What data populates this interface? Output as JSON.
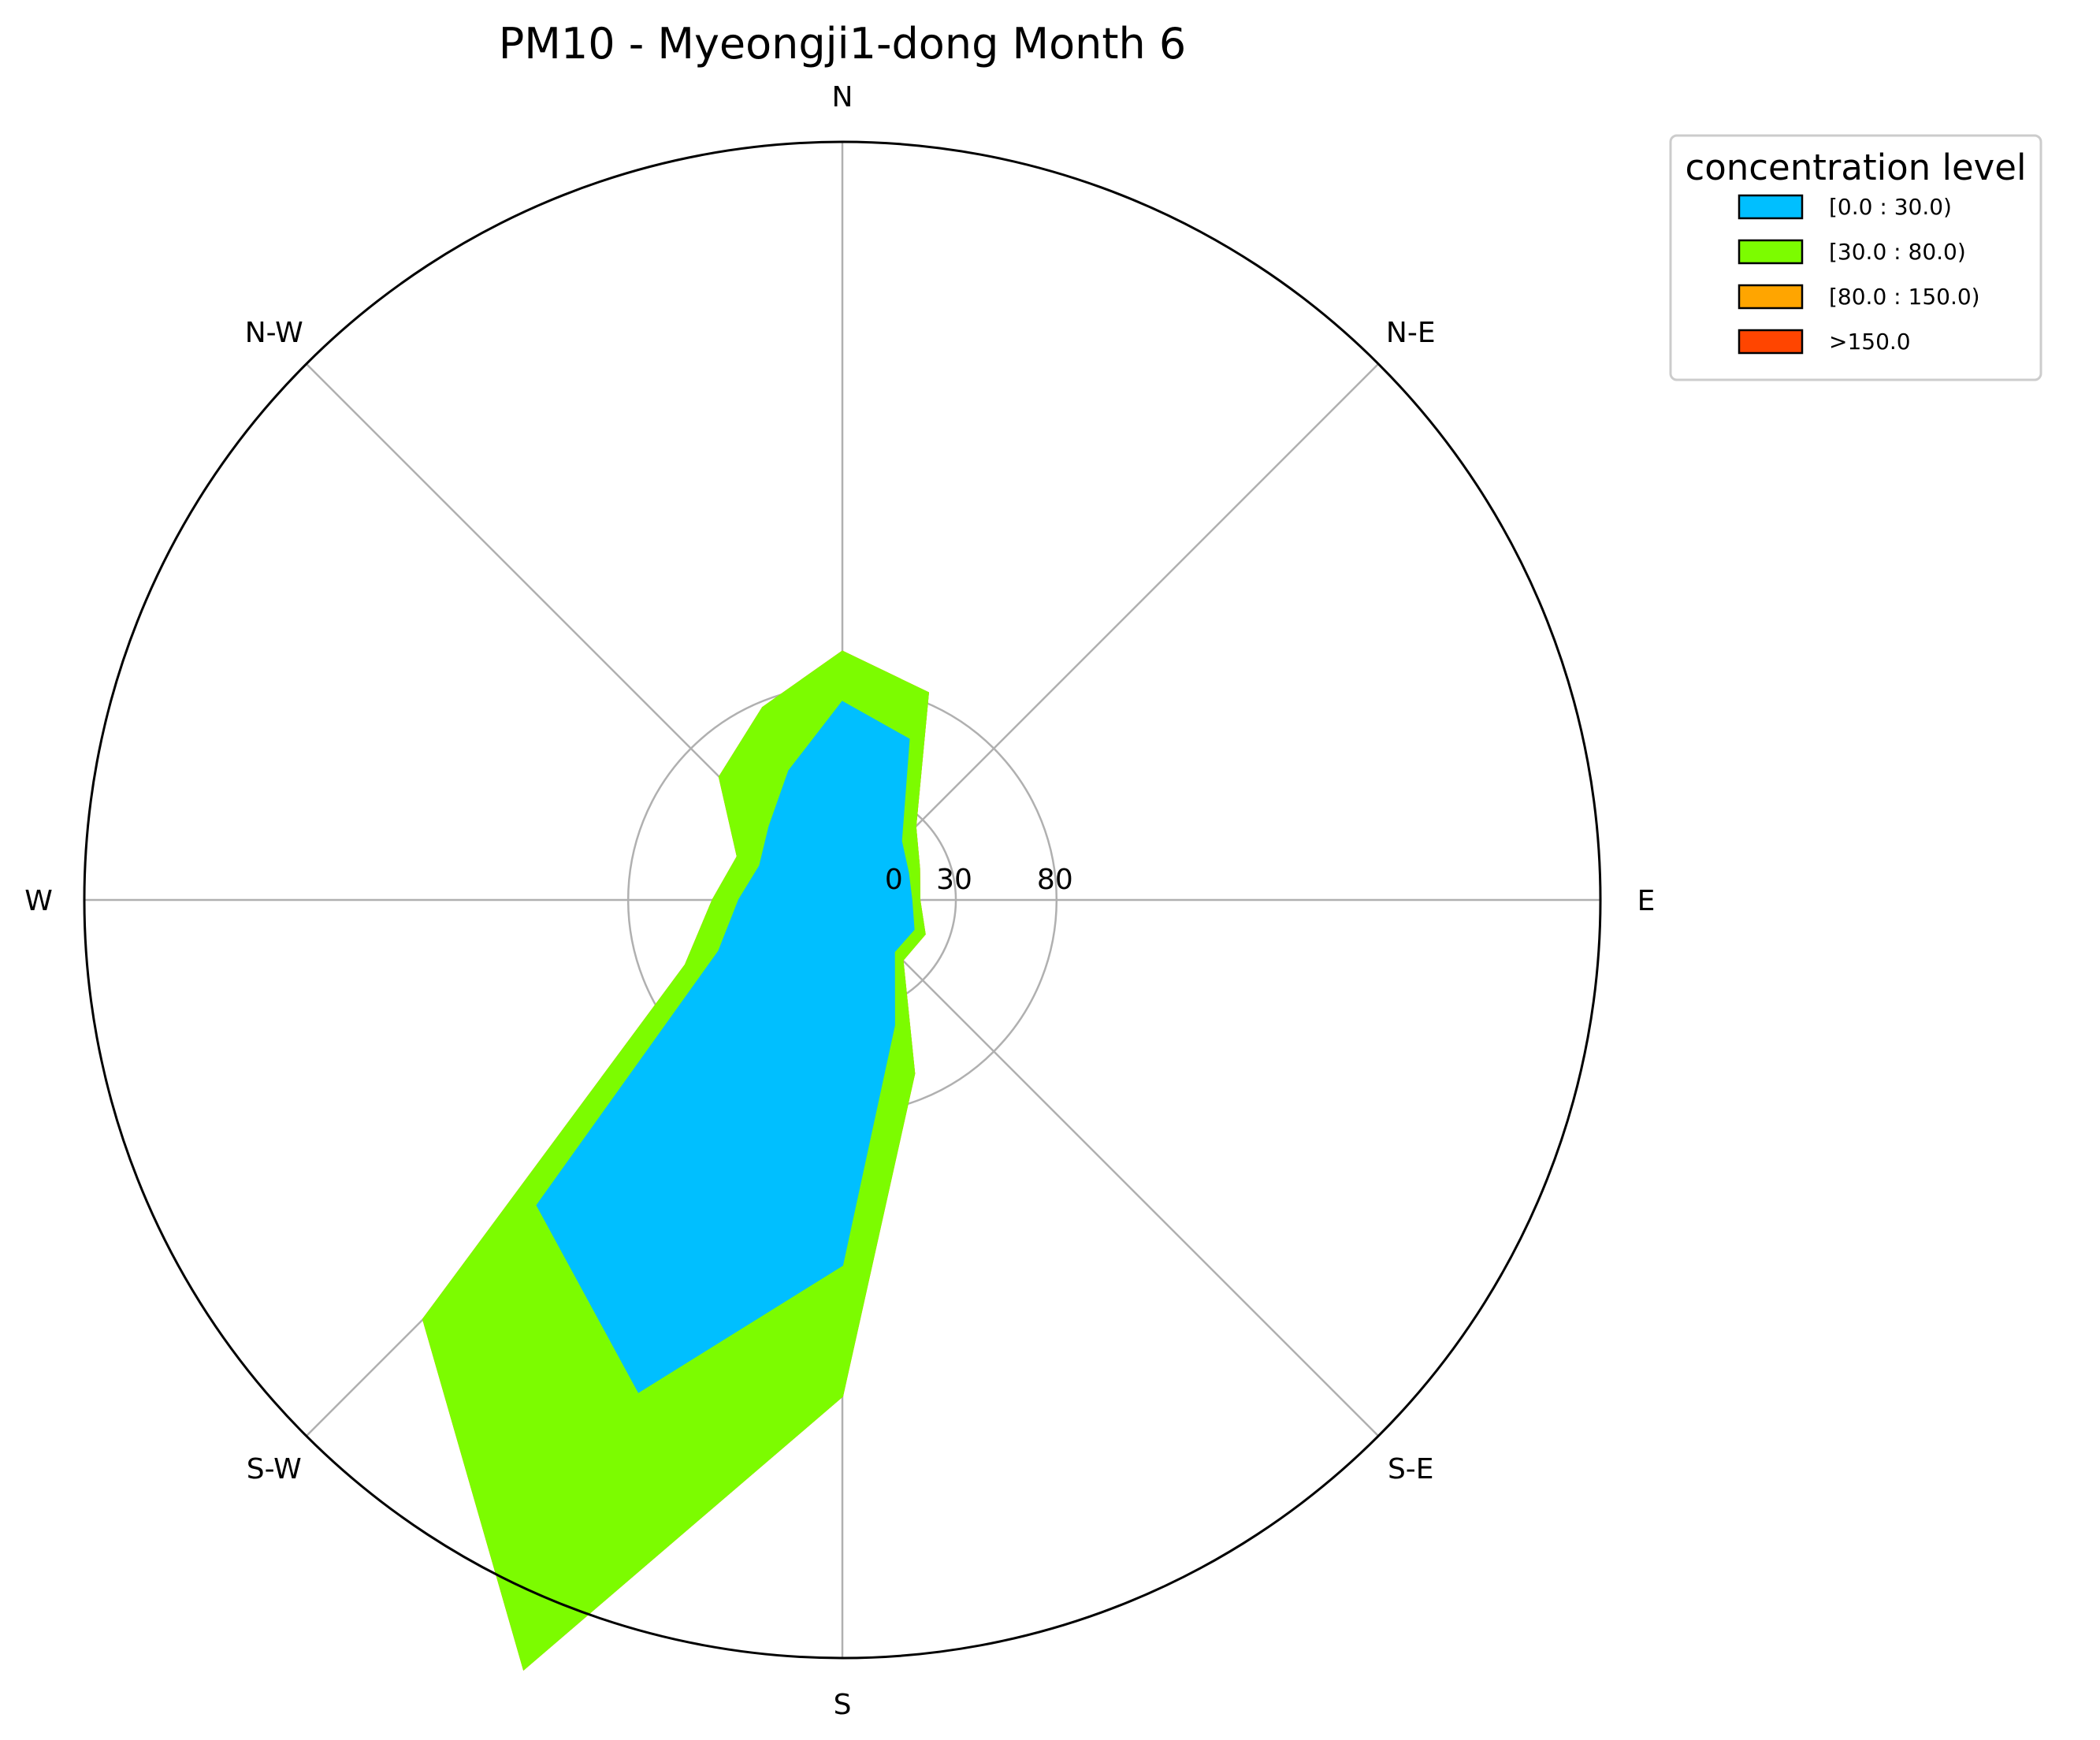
{
  "chart_data": {
    "type": "polar-area",
    "title": "PM10 - Myeongji1-dong Month 6",
    "directions": [
      {
        "key": "N",
        "label": "N"
      },
      {
        "key": "NE",
        "label": "N-E"
      },
      {
        "key": "E",
        "label": "E"
      },
      {
        "key": "SE",
        "label": "S-E"
      },
      {
        "key": "S",
        "label": "S"
      },
      {
        "key": "SW",
        "label": "S-W"
      },
      {
        "key": "W",
        "label": "W"
      },
      {
        "key": "NW",
        "label": "N-W"
      }
    ],
    "radial_ticks": [
      {
        "value": 0,
        "label": "0"
      },
      {
        "value": 30,
        "label": "30"
      },
      {
        "value": 80,
        "label": "80"
      }
    ],
    "legend": {
      "title": "concentration level",
      "placement": "upper-right, outside plot",
      "entries": [
        {
          "label": "[0.0 : 30.0)",
          "color": "#00bfff"
        },
        {
          "label": "[30.0 : 80.0)",
          "color": "#7cfc00"
        },
        {
          "label": "[80.0 : 150.0)",
          "color": "#ffa500"
        },
        {
          "label": ">150.0",
          "color": "#ff4500"
        }
      ]
    },
    "angles_deg": [
      0,
      22.5,
      45,
      67.5,
      90,
      112.5,
      135,
      157.5,
      180,
      202.5,
      225,
      247.5,
      270,
      292.5,
      315,
      337.5
    ],
    "series": [
      {
        "name": "[0.0 : 30.0)",
        "color": "#00bfff",
        "values": [
          72,
          60,
          15,
          9,
          8,
          12,
          10,
          41,
          155,
          238,
          188,
          40,
          25,
          18,
          25,
          43
        ]
      },
      {
        "name": "[30.0 : 80.0)",
        "color": "#7cfc00",
        "values": [
          97,
          85,
          25,
          15,
          12,
          18,
          16,
          67,
          220,
          387,
          268,
          58,
          38,
          30,
          60,
          77
        ]
      },
      {
        "name": "[80.0 : 150.0)",
        "color": "#ffa500",
        "values": [
          97,
          85,
          25,
          15,
          12,
          18,
          16,
          67,
          220,
          387,
          268,
          58,
          38,
          30,
          60,
          77
        ]
      },
      {
        "name": ">150.0",
        "color": "#ff4500",
        "values": [
          97,
          85,
          25,
          15,
          12,
          18,
          16,
          67,
          220,
          387,
          268,
          58,
          38,
          30,
          60,
          77
        ]
      }
    ],
    "rlim": [
      0,
      350
    ],
    "grid": true
  }
}
